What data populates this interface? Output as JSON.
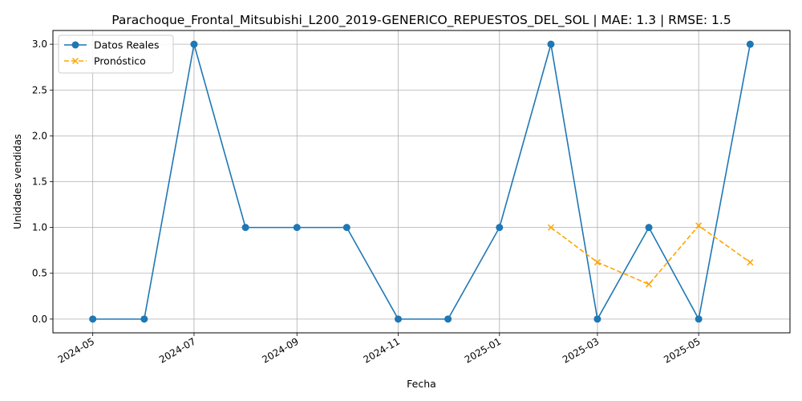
{
  "chart_data": {
    "type": "line",
    "title": "Parachoque_Frontal_Mitsubishi_L200_2019-GENERICO_REPUESTOS_DEL_SOL | MAE: 1.3 | RMSE: 1.5",
    "xlabel": "Fecha",
    "ylabel": "Unidades vendidas",
    "x_ticks": [
      "2024-05",
      "2024-07",
      "2024-09",
      "2024-11",
      "2025-01",
      "2025-03",
      "2025-05"
    ],
    "y_ticks": [
      "0.0",
      "0.5",
      "1.0",
      "1.5",
      "2.0",
      "2.5",
      "3.0"
    ],
    "ylim": [
      -0.15,
      3.15
    ],
    "xlim": [
      "2024-04-07",
      "2025-06-25"
    ],
    "grid": true,
    "legend_position": "upper-left",
    "series": [
      {
        "name": "Datos Reales",
        "color": "#1f77b4",
        "style": "solid",
        "marker": "circle",
        "x": [
          "2024-05-01",
          "2024-06-01",
          "2024-07-01",
          "2024-08-01",
          "2024-09-01",
          "2024-10-01",
          "2024-11-01",
          "2024-12-01",
          "2025-01-01",
          "2025-02-01",
          "2025-03-01",
          "2025-04-01",
          "2025-05-01",
          "2025-06-01"
        ],
        "values": [
          0,
          0,
          3,
          1,
          1,
          1,
          0,
          0,
          1,
          3,
          0,
          1,
          0,
          3
        ]
      },
      {
        "name": "Pronóstico",
        "color": "#ffa500",
        "style": "dashed",
        "marker": "x",
        "x": [
          "2025-02-01",
          "2025-03-01",
          "2025-04-01",
          "2025-05-01",
          "2025-06-01"
        ],
        "values": [
          1.0,
          0.62,
          0.38,
          1.02,
          0.62
        ]
      }
    ]
  }
}
